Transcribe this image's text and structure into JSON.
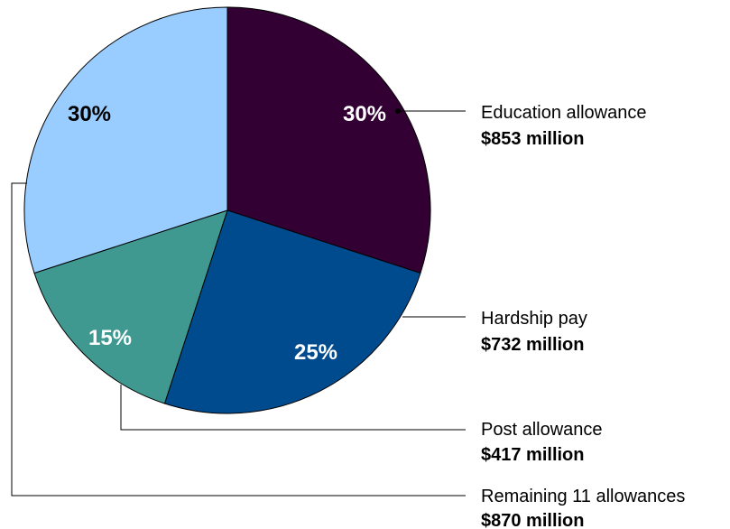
{
  "chart_data": {
    "type": "pie",
    "slices": [
      {
        "name": "Education allowance",
        "amount": "$853 million",
        "percent": 30,
        "percent_label": "30%",
        "color": "#330033",
        "label_color": "#ffffff"
      },
      {
        "name": "Hardship pay",
        "amount": "$732 million",
        "percent": 25,
        "percent_label": "25%",
        "color": "#004b8d",
        "label_color": "#ffffff"
      },
      {
        "name": "Post allowance",
        "amount": "$417 million",
        "percent": 15,
        "percent_label": "15%",
        "color": "#3f9990",
        "label_color": "#ffffff"
      },
      {
        "name": "Remaining 11 allowances",
        "amount": "$870 million",
        "percent": 30,
        "percent_label": "30%",
        "color": "#99ccff",
        "label_color": "#000000"
      }
    ],
    "start_angle": "12 o'clock",
    "direction": "clockwise",
    "legend_position": "right"
  }
}
